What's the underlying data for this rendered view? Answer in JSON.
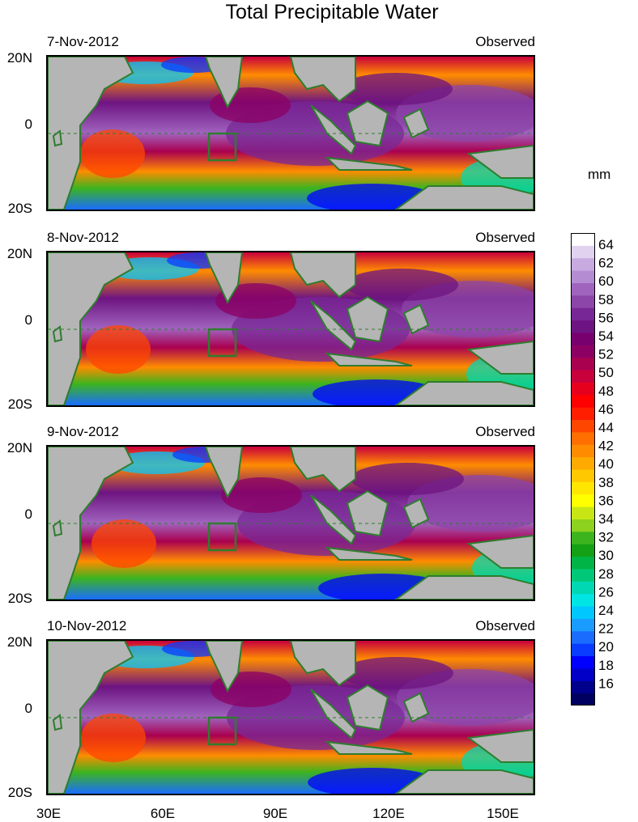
{
  "title": "Total Precipitable Water",
  "units": "mm",
  "panels": [
    {
      "date": "7-Nov-2012",
      "label": "Observed"
    },
    {
      "date": "8-Nov-2012",
      "label": "Observed"
    },
    {
      "date": "9-Nov-2012",
      "label": "Observed"
    },
    {
      "date": "10-Nov-2012",
      "label": "Observed"
    }
  ],
  "lat_labels": [
    "20N",
    "0",
    "20S"
  ],
  "lon_labels": [
    "30E",
    "60E",
    "90E",
    "120E",
    "150E"
  ],
  "colorbar_labels": [
    "64",
    "62",
    "60",
    "58",
    "56",
    "54",
    "52",
    "50",
    "48",
    "46",
    "44",
    "42",
    "40",
    "38",
    "36",
    "34",
    "32",
    "30",
    "28",
    "26",
    "24",
    "22",
    "20",
    "18",
    "16"
  ],
  "colors": {
    "land": "#b5b5b5",
    "coast": "#2e7d2e",
    "palette_low_to_high": [
      "#000060",
      "#00008c",
      "#0000c8",
      "#0000ff",
      "#0a3cff",
      "#1a6cff",
      "#1a9cff",
      "#00c8ff",
      "#00e4e4",
      "#00d8b4",
      "#00c878",
      "#00b446",
      "#14a014",
      "#3cb41e",
      "#8cd21e",
      "#c8e614",
      "#ffff00",
      "#ffe600",
      "#ffc800",
      "#ffaa00",
      "#ff8c00",
      "#ff6e00",
      "#ff4600",
      "#ff1e00",
      "#ff0000",
      "#e6001e",
      "#c8003c",
      "#aa0050",
      "#8c0064",
      "#78006e",
      "#6e1482",
      "#782896",
      "#8c46aa",
      "#a064be",
      "#b48cd2",
      "#c8aae1",
      "#e1d2f0",
      "#ffffff"
    ]
  }
}
